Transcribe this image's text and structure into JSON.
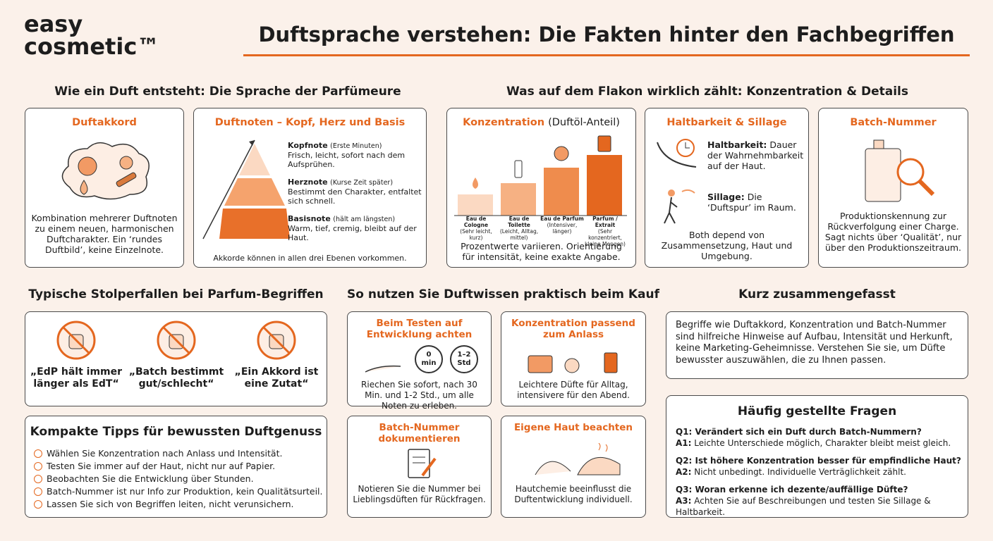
{
  "brand": {
    "line1": "easy",
    "line2": "cosmetic™"
  },
  "title": "Duftsprache verstehen: Die Fakten hinter den Fachbegriffen",
  "section1": {
    "heading": "Wie ein Duft entsteht: Die Sprache der Parfümeure",
    "accord": {
      "title": "Duftakkord",
      "text": "Kombination mehrerer Duftnoten zu einem neuen, harmonischen Duftcharakter. Ein ‘rundes Duftbild’, keine Einzelnote."
    },
    "notes": {
      "title": "Duftnoten – Kopf, Herz und Basis",
      "levels": [
        {
          "name": "Kopfnote",
          "hint": "(Erste Minuten)",
          "text": "Frisch, leicht, sofort nach dem Aufsprühen."
        },
        {
          "name": "Herznote",
          "hint": "(Kurse Zeit später)",
          "text": "Bestimmt den Charakter, entfaltet sich schnell."
        },
        {
          "name": "Basisnote",
          "hint": "(hält am längsten)",
          "text": "Warm, tief, cremig, bleibt auf der Haut."
        }
      ],
      "footer": "Akkorde können in allen drei Ebenen vorkommen."
    }
  },
  "section2": {
    "heading": "Was auf dem Flakon wirklich zählt: Konzentration & Details",
    "concentration": {
      "title": "Konzentration",
      "title_suffix": "(Duftöl-Anteil)",
      "types": [
        {
          "name": "Eau de Cologne",
          "hint": "(Sehr leicht, kurz)"
        },
        {
          "name": "Eau de Toilette",
          "hint": "(Leicht, Alltag, mittel)"
        },
        {
          "name": "Eau de Parfum",
          "hint": "(Intensiver, länger)"
        },
        {
          "name": "Parfum / Extrait",
          "hint": "(Sehr konzentriert, kleine Mengen)"
        }
      ],
      "text": "Prozentwerte variieren. Orientierung für intensität, keine exakte Angabe."
    },
    "longevity": {
      "title": "Haltbarkeit & Sillage",
      "items": [
        {
          "term": "Haltbarkeit:",
          "text": "Dauer der Wahrnehmbarkeit auf der Haut."
        },
        {
          "term": "Sillage:",
          "text": "Die ‘Duftspur’ im Raum."
        }
      ],
      "text": "Both depend von Zusammensetzung, Haut und Umgebung."
    },
    "batch": {
      "title": "Batch-Nummer",
      "text": "Produktionskennung zur Rückverfolgung einer Charge. Sagt nichts über ‘Qualität’, nur über den Produktionszeitraum."
    }
  },
  "pitfalls": {
    "heading": "Typische Stolperfallen bei Parfum-Begriffen",
    "items": [
      "„EdP hält immer länger als EdT“",
      "„Batch bestimmt gut/schlecht“",
      "„Ein Akkord ist eine Zutat“"
    ]
  },
  "tips": {
    "heading": "Kompakte Tipps für bewussten Duftgenuss",
    "items": [
      "Wählen Sie Konzentration nach Anlass und Intensität.",
      "Testen Sie immer auf der Haut, nicht nur auf Papier.",
      "Beobachten Sie die Entwicklung über Stunden.",
      "Batch-Nummer ist nur Info zur Produktion, kein Qualitätsurteil.",
      "Lassen Sie sich von Begriffen leiten, nicht verunsichern."
    ]
  },
  "practical": {
    "heading": "So nutzen Sie Duftwissen praktisch beim Kauf",
    "timers": [
      {
        "top": "0",
        "bottom": "min"
      },
      {
        "top": "1–2",
        "bottom": "Std"
      }
    ],
    "cards": [
      {
        "title": "Beim Testen auf Entwicklung achten",
        "text": "Riechen Sie sofort, nach 30 Min. und 1-2 Std., um alle Noten zu erleben."
      },
      {
        "title": "Konzentration passend zum Anlass",
        "text": "Leichtere Düfte für Alltag, intensivere für den Abend."
      },
      {
        "title": "Batch-Nummer dokumentieren",
        "text": "Notieren Sie die Nummer bei Lieblingsdüften für Rückfragen."
      },
      {
        "title": "Eigene Haut beachten",
        "text": "Hautchemie beeinflusst die Duftentwicklung individuell."
      }
    ]
  },
  "summary": {
    "heading": "Kurz zusammengefasst",
    "text": "Begriffe wie Duftakkord, Konzentration und Batch-Nummer sind hilfreiche Hinweise auf Aufbau, Intensität und Herkunft, keine Marketing-Geheimnisse. Verstehen Sie sie, um Düfte bewusster auszuwählen, die zu Ihnen passen."
  },
  "faq": {
    "heading": "Häufig gestellte Fragen",
    "items": [
      {
        "q": "Q1: Verändert sich ein Duft durch Batch-Nummern?",
        "a_label": "A1:",
        "a": "Leichte Unterschiede möglich, Charakter bleibt meist gleich."
      },
      {
        "q": "Q2: Ist höhere Konzentration besser für empfindliche Haut?",
        "a_label": "A2:",
        "a": "Nicht unbedingt. Individuelle Verträglichkeit zählt."
      },
      {
        "q": "Q3: Woran erkenne ich dezente/auffällige Düfte?",
        "a_label": "A3:",
        "a": "Achten Sie auf Beschreibungen und testen Sie Sillage & Haltbarkeit."
      }
    ]
  }
}
